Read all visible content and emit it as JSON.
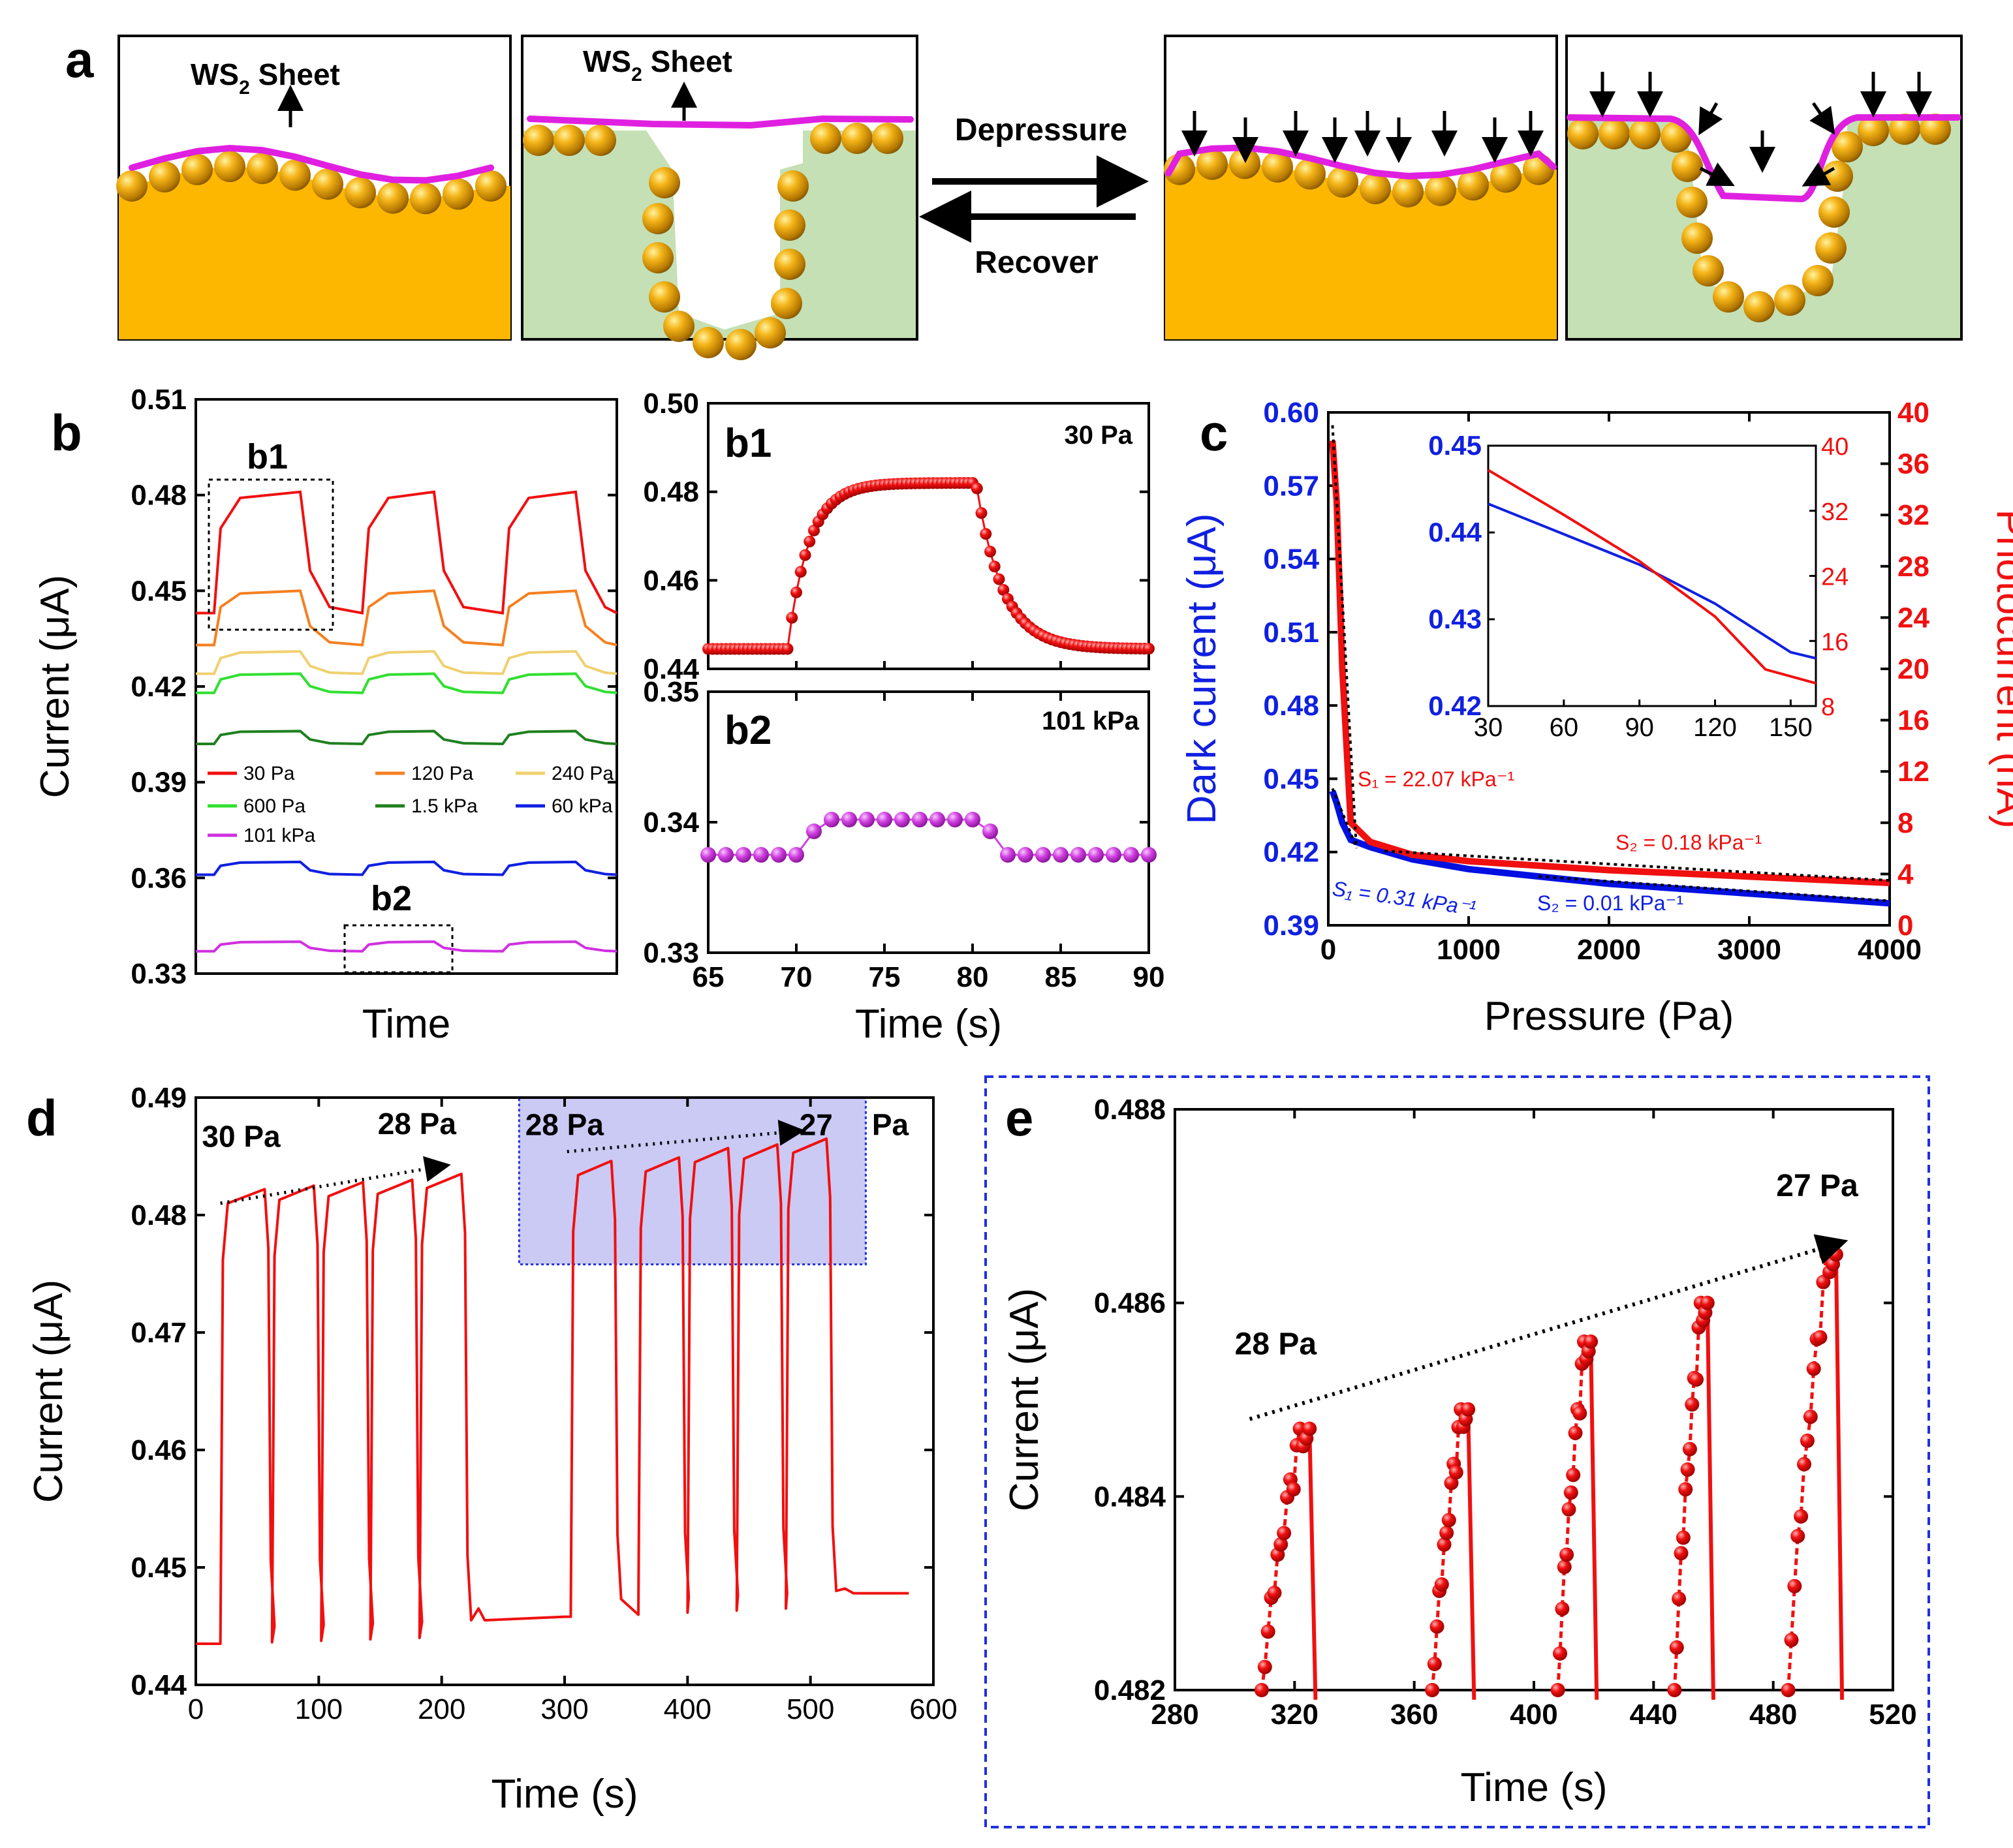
{
  "figure_labels": {
    "a": "a",
    "b": "b",
    "c": "c",
    "d": "d",
    "e": "e"
  },
  "panel_a": {
    "sheet_label": "WS",
    "sheet_sub": "2",
    "sheet_suffix": " Sheet",
    "depressure": "Depressure",
    "recover": "Recover",
    "colors": {
      "gold": "#FDB700",
      "green": "#C5E0B4",
      "pink": "#E020E0",
      "arrow": "#000000"
    }
  },
  "chart_data": [
    {
      "id": "b",
      "type": "line",
      "title": "",
      "xlabel": "Time",
      "ylabel": "Current (μA)",
      "ylim": [
        0.33,
        0.51
      ],
      "yticks": [
        "0.33",
        "0.36",
        "0.39",
        "0.42",
        "0.45",
        "0.48",
        "0.51"
      ],
      "yticks_values": [
        0.33,
        0.36,
        0.39,
        0.42,
        0.45,
        0.48,
        0.51
      ],
      "series": [
        {
          "name": "30 Pa",
          "color": "#F01010",
          "base": 0.443,
          "high": 0.481
        },
        {
          "name": "120 Pa",
          "color": "#F58020",
          "base": 0.433,
          "high": 0.45
        },
        {
          "name": "240 Pa",
          "color": "#F0D070",
          "base": 0.424,
          "high": 0.431
        },
        {
          "name": "600 Pa",
          "color": "#30E030",
          "base": 0.418,
          "high": 0.424
        },
        {
          "name": "1.5 kPa",
          "color": "#208020",
          "base": 0.402,
          "high": 0.406
        },
        {
          "name": "60 kPa",
          "color": "#1020E0",
          "base": 0.361,
          "high": 0.365
        },
        {
          "name": "101 kPa",
          "color": "#D030E0",
          "base": 0.337,
          "high": 0.34
        }
      ],
      "legend_labels": [
        "30 Pa",
        "120 Pa",
        "240 Pa",
        "600 Pa",
        "1.5 kPa",
        "60 kPa",
        "101 kPa"
      ],
      "annotations": {
        "b1": "b1",
        "b2": "b2"
      }
    },
    {
      "id": "b1",
      "type": "scatter",
      "title": "b1",
      "pressure": "30 Pa",
      "ylim": [
        0.44,
        0.5
      ],
      "yticks": [
        "0.44",
        "0.46",
        "0.48",
        "0.50"
      ],
      "yticks_values": [
        0.44,
        0.46,
        0.48,
        0.5
      ],
      "xlim": [
        65,
        90
      ],
      "base": 0.4445,
      "high": 0.482,
      "rise_start": 69.5,
      "fall_start": 80.2,
      "color": "#F01010"
    },
    {
      "id": "b2",
      "type": "scatter",
      "title": "b2",
      "pressure": "101 kPa",
      "ylim": [
        0.33,
        0.35
      ],
      "yticks": [
        "0.33",
        "0.34",
        "0.35"
      ],
      "yticks_values": [
        0.33,
        0.34,
        0.35
      ],
      "xlim": [
        65,
        90
      ],
      "xticks": [
        "65",
        "70",
        "75",
        "80",
        "85",
        "90"
      ],
      "xticks_values": [
        65,
        70,
        75,
        80,
        85,
        90
      ],
      "xlabel": "Time (s)",
      "base": 0.3375,
      "high": 0.3402,
      "color": "#D040E0"
    },
    {
      "id": "c",
      "type": "line",
      "xlabel": "Pressure (Pa)",
      "ylabel_left": "Dark current (μA)",
      "ylabel_right": "Photocurrent (nA)",
      "xlim": [
        0,
        4000
      ],
      "xticks": [
        "0",
        "1000",
        "2000",
        "3000",
        "4000"
      ],
      "xticks_values": [
        0,
        1000,
        2000,
        3000,
        4000
      ],
      "ylim_left": [
        0.39,
        0.6
      ],
      "yticks_left": [
        "0.39",
        "0.42",
        "0.45",
        "0.48",
        "0.51",
        "0.54",
        "0.57",
        "0.60"
      ],
      "yticks_left_values": [
        0.39,
        0.42,
        0.45,
        0.48,
        0.51,
        0.54,
        0.57,
        0.6
      ],
      "ylim_right": [
        0,
        40
      ],
      "yticks_right": [
        "0",
        "4",
        "8",
        "12",
        "16",
        "20",
        "24",
        "28",
        "32",
        "36",
        "40"
      ],
      "yticks_right_values": [
        0,
        4,
        8,
        12,
        16,
        20,
        24,
        28,
        32,
        36,
        40
      ],
      "dark_current": {
        "x": [
          30,
          60,
          100,
          160,
          300,
          600,
          1000,
          2000,
          3000,
          4000
        ],
        "y": [
          0.445,
          0.44,
          0.432,
          0.425,
          0.422,
          0.417,
          0.413,
          0.407,
          0.403,
          0.399
        ],
        "color": "#0010E0"
      },
      "photocurrent": {
        "x": [
          30,
          60,
          100,
          160,
          300,
          600,
          1000,
          2000,
          3000,
          4000
        ],
        "y": [
          37.8,
          33,
          20,
          8,
          6.5,
          5.5,
          5.0,
          4.3,
          3.8,
          3.3
        ],
        "color": "#F01010"
      },
      "annotations": {
        "s1_red": "S₁ = 22.07 kPa⁻¹",
        "s2_red": "S₂ = 0.18 kPa⁻¹",
        "s1_blue": "S₁ = 0.31 kPa⁻¹",
        "s2_blue": "S₂ = 0.01 kPa⁻¹"
      },
      "inset": {
        "xlim": [
          30,
          160
        ],
        "xticks": [
          "30",
          "60",
          "90",
          "120",
          "150"
        ],
        "xticks_values": [
          30,
          60,
          90,
          120,
          150
        ],
        "ylim_left": [
          0.42,
          0.45
        ],
        "yticks_left": [
          "0.42",
          "0.43",
          "0.44",
          "0.45"
        ],
        "yticks_left_values": [
          0.42,
          0.43,
          0.44,
          0.45
        ],
        "ylim_right": [
          8,
          40
        ],
        "yticks_right": [
          "8",
          "16",
          "24",
          "32",
          "40"
        ],
        "yticks_right_values": [
          8,
          16,
          24,
          32,
          40
        ],
        "dark": {
          "x": [
            30,
            60,
            90,
            120,
            150,
            160
          ],
          "y": [
            0.4433,
            0.4398,
            0.4363,
            0.4318,
            0.4262,
            0.4255
          ]
        },
        "photo": {
          "x": [
            30,
            60,
            90,
            120,
            140,
            160
          ],
          "y": [
            37.0,
            31.5,
            25.8,
            19.0,
            12.5,
            10.8
          ]
        }
      }
    },
    {
      "id": "d",
      "type": "line",
      "xlabel": "Time (s)",
      "ylabel": "Current (μA)",
      "xlim": [
        0,
        600
      ],
      "xticks": [
        "0",
        "100",
        "200",
        "300",
        "400",
        "500",
        "600"
      ],
      "xticks_values": [
        0,
        100,
        200,
        300,
        400,
        500,
        600
      ],
      "ylim": [
        0.44,
        0.49
      ],
      "yticks": [
        "0.44",
        "0.45",
        "0.46",
        "0.47",
        "0.48",
        "0.49"
      ],
      "yticks_values": [
        0.44,
        0.45,
        0.46,
        0.47,
        0.48,
        0.49
      ],
      "color": "#F01010",
      "pulses_group1": [
        {
          "start": 20,
          "end": 60,
          "high": 0.4822
        },
        {
          "start": 62,
          "end": 100,
          "high": 0.4825
        },
        {
          "start": 102,
          "end": 140,
          "high": 0.4828
        },
        {
          "start": 142,
          "end": 180,
          "high": 0.483
        },
        {
          "start": 182,
          "end": 220,
          "high": 0.4835
        }
      ],
      "pulses_group2": [
        {
          "start": 305,
          "end": 342,
          "high": 0.4846
        },
        {
          "start": 360,
          "end": 397,
          "high": 0.4849
        },
        {
          "start": 400,
          "end": 437,
          "high": 0.4857
        },
        {
          "start": 440,
          "end": 477,
          "high": 0.486
        },
        {
          "start": 480,
          "end": 517,
          "high": 0.4865
        }
      ],
      "annotations": {
        "start1": "30 Pa",
        "end1": "28 Pa",
        "start2": "28 Pa",
        "end2": "27",
        "end2_unit": "Pa"
      },
      "highlight": {
        "x": [
          263,
          545
        ],
        "y": [
          0.4758,
          0.49
        ],
        "color": "#6060D8"
      }
    },
    {
      "id": "e",
      "type": "scatter",
      "xlabel": "Time (s)",
      "ylabel": "Current (μA)",
      "xlim": [
        280,
        520
      ],
      "xticks": [
        "280",
        "320",
        "360",
        "400",
        "440",
        "480",
        "520"
      ],
      "xticks_values": [
        280,
        320,
        360,
        400,
        440,
        480,
        520
      ],
      "ylim": [
        0.482,
        0.488
      ],
      "yticks": [
        "0.482",
        "0.484",
        "0.486",
        "0.488"
      ],
      "yticks_values": [
        0.482,
        0.484,
        0.486,
        0.488
      ],
      "color": "#F01010",
      "clusters": [
        {
          "start": 309,
          "end": 327,
          "peak": 0.4847
        },
        {
          "start": 366,
          "end": 380,
          "peak": 0.4849
        },
        {
          "start": 408,
          "end": 421,
          "peak": 0.4856
        },
        {
          "start": 447,
          "end": 460,
          "peak": 0.486
        },
        {
          "start": 485,
          "end": 503,
          "peak": 0.4865
        }
      ],
      "annotations": {
        "start": "28 Pa",
        "end": "27 Pa"
      }
    }
  ]
}
